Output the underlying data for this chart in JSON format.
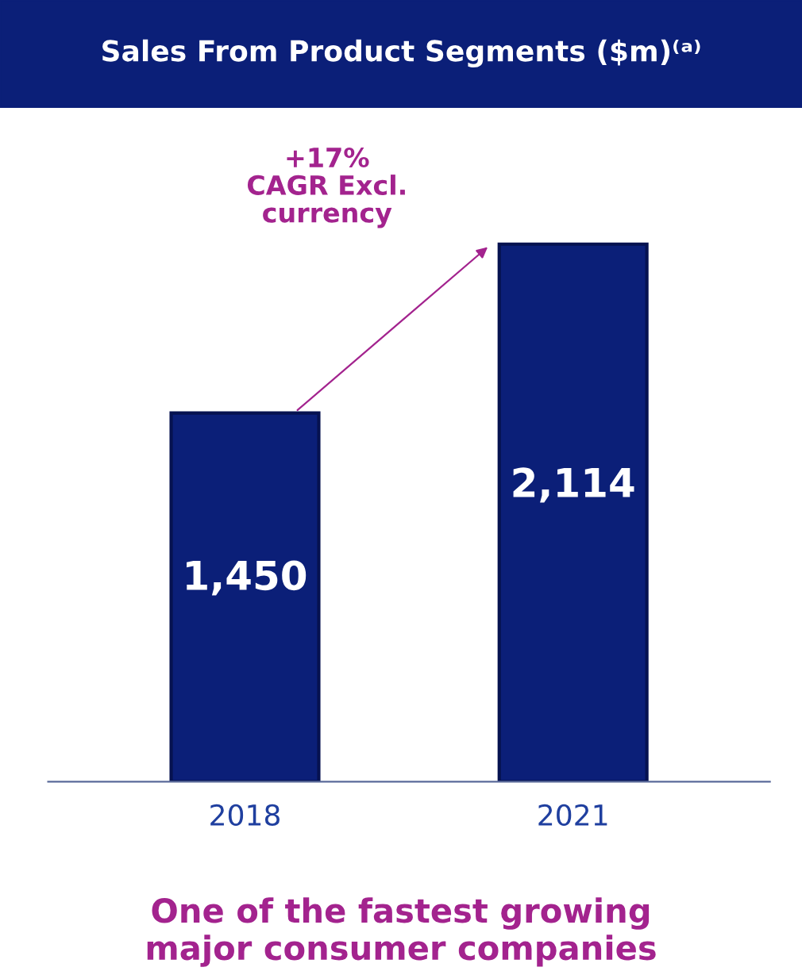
{
  "chart_data": {
    "type": "bar",
    "title": "Sales From Product Segments ($m)⁽ᵃ⁾",
    "categories": [
      "2018",
      "2021"
    ],
    "values": [
      1450,
      2114
    ],
    "color": "#0b1f78",
    "value_labels": [
      "1,450",
      "2,114"
    ],
    "annotations": [
      "+17%\nCAGR Excl.\ncurrency",
      "One of the fastest growing\nmajor consumer companies"
    ]
  }
}
